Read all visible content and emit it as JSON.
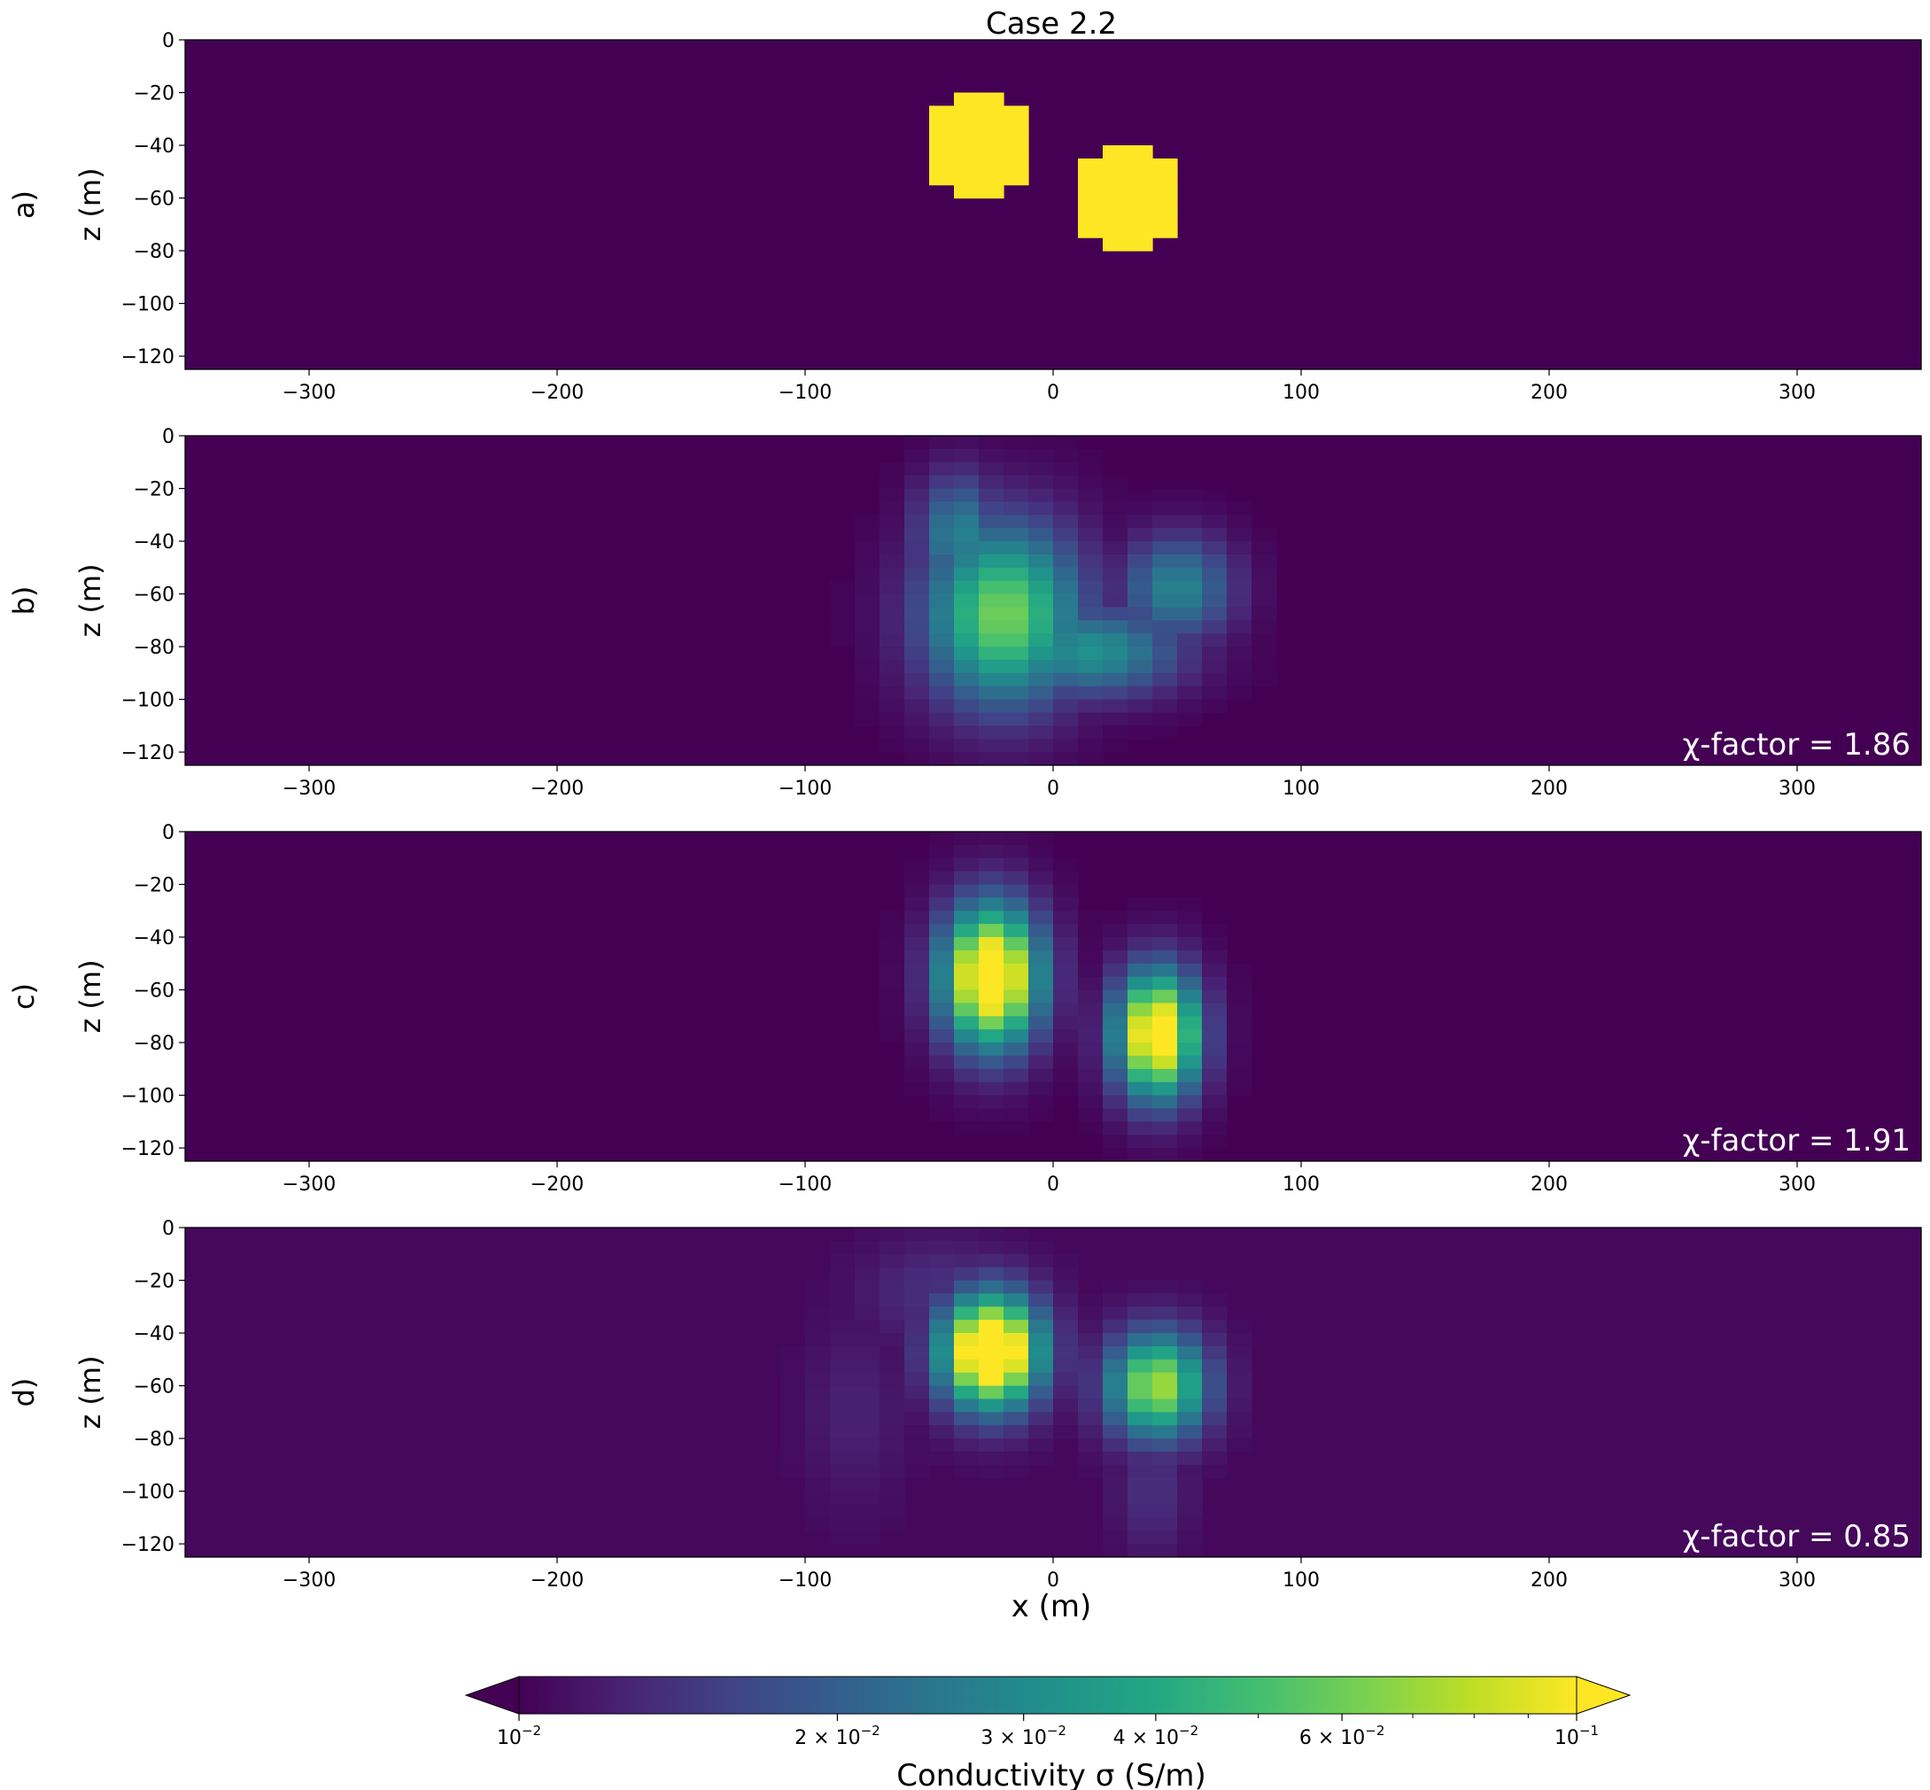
{
  "title": "Case 2.2",
  "xlabel": "x (m)",
  "colorbar": {
    "label": "Conductivity σ (S/m)",
    "ticks": [
      {
        "value": 0.01,
        "label_mant": "",
        "label_exp": "−2"
      },
      {
        "value": 0.02,
        "label_mant": "2",
        "label_exp": "−2"
      },
      {
        "value": 0.03,
        "label_mant": "3",
        "label_exp": "−2"
      },
      {
        "value": 0.04,
        "label_mant": "4",
        "label_exp": "−2"
      },
      {
        "value": 0.06,
        "label_mant": "6",
        "label_exp": "−2"
      },
      {
        "value": 0.1,
        "label_mant": "",
        "label_exp": "−1"
      }
    ],
    "range": [
      0.01,
      0.1
    ],
    "scale": "log",
    "colormap": "viridis",
    "extend": "both"
  },
  "chart_data": [
    {
      "type": "heatmap",
      "panel_label": "a)",
      "ylabel": "z (m)",
      "chi_text": "",
      "xlim": [
        -350,
        350
      ],
      "ylim": [
        -125,
        0
      ],
      "xticks": [
        -300,
        -200,
        -100,
        0,
        100,
        200,
        300
      ],
      "yticks": [
        0,
        -20,
        -40,
        -60,
        -80,
        -100,
        -120
      ],
      "background": 0.01,
      "anomalies": [
        {
          "kind": "disc",
          "cx": -30,
          "cz": -40,
          "r": 20,
          "peak": 0.1
        },
        {
          "kind": "disc",
          "cx": 30,
          "cz": -60,
          "r": 20,
          "peak": 0.1
        }
      ]
    },
    {
      "type": "heatmap",
      "panel_label": "b)",
      "ylabel": "z (m)",
      "chi_text": "χ-factor = 1.86",
      "xlim": [
        -350,
        350
      ],
      "ylim": [
        -125,
        0
      ],
      "xticks": [
        -300,
        -200,
        -100,
        0,
        100,
        200,
        300
      ],
      "yticks": [
        0,
        -20,
        -40,
        -60,
        -80,
        -100,
        -120
      ],
      "background": 0.01,
      "anomalies": [
        {
          "kind": "blob",
          "cx": -20,
          "cz": -68,
          "sx": 22,
          "sz": 24,
          "peak": 0.062
        },
        {
          "kind": "blob",
          "cx": -38,
          "cz": -38,
          "sx": 12,
          "sz": 16,
          "peak": 0.028
        },
        {
          "kind": "blob",
          "cx": 15,
          "cz": -82,
          "sx": 26,
          "sz": 12,
          "peak": 0.032
        },
        {
          "kind": "blob",
          "cx": 50,
          "cz": -58,
          "sx": 16,
          "sz": 14,
          "peak": 0.028
        }
      ]
    },
    {
      "type": "heatmap",
      "panel_label": "c)",
      "ylabel": "z (m)",
      "chi_text": "χ-factor = 1.91",
      "xlim": [
        -350,
        350
      ],
      "ylim": [
        -125,
        0
      ],
      "xticks": [
        -300,
        -200,
        -100,
        0,
        100,
        200,
        300
      ],
      "yticks": [
        0,
        -20,
        -40,
        -60,
        -80,
        -100,
        -120
      ],
      "background": 0.01,
      "anomalies": [
        {
          "kind": "blob",
          "cx": -25,
          "cz": -55,
          "sx": 14,
          "sz": 19,
          "peak": 0.16
        },
        {
          "kind": "blob",
          "cx": 42,
          "cz": -77,
          "sx": 12,
          "sz": 17,
          "peak": 0.14
        }
      ]
    },
    {
      "type": "heatmap",
      "panel_label": "d)",
      "ylabel": "z (m)",
      "chi_text": "χ-factor = 0.85",
      "xlim": [
        -350,
        350
      ],
      "ylim": [
        -125,
        0
      ],
      "xticks": [
        -300,
        -200,
        -100,
        0,
        100,
        200,
        300
      ],
      "yticks": [
        0,
        -20,
        -40,
        -60,
        -80,
        -100,
        -120
      ],
      "background": 0.0105,
      "anomalies": [
        {
          "kind": "blob",
          "cx": -25,
          "cz": -47,
          "sx": 14,
          "sz": 15,
          "peak": 0.2
        },
        {
          "kind": "blob",
          "cx": 42,
          "cz": -60,
          "sx": 14,
          "sz": 14,
          "peak": 0.075
        },
        {
          "kind": "blob",
          "cx": -45,
          "cz": -25,
          "sx": 22,
          "sz": 14,
          "peak": 0.014
        },
        {
          "kind": "blob",
          "cx": 40,
          "cz": -100,
          "sx": 10,
          "sz": 16,
          "peak": 0.014
        },
        {
          "kind": "blob",
          "cx": -80,
          "cz": -70,
          "sx": 14,
          "sz": 25,
          "peak": 0.0125
        }
      ]
    }
  ]
}
